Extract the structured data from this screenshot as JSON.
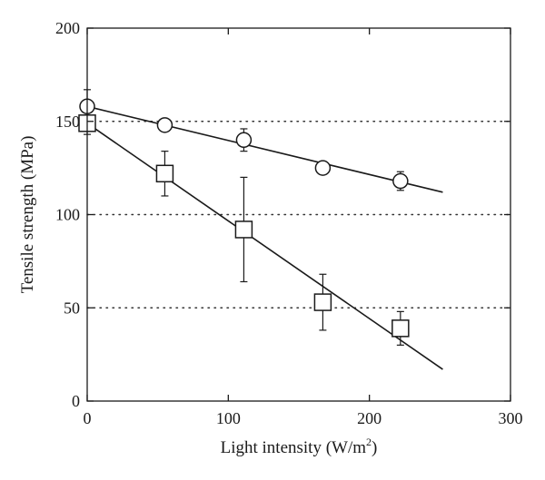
{
  "chart_data": {
    "type": "scatter",
    "xlabel": "Light intensity (W/m",
    "xlabel_superscript": "2",
    "xlabel_suffix": ")",
    "ylabel": "Tensile strength (MPa)",
    "xlim": [
      0,
      300
    ],
    "ylim": [
      0,
      200
    ],
    "xticks": [
      "0",
      "100",
      "200",
      "300"
    ],
    "yticks": [
      "0",
      "50",
      "100",
      "150",
      "200"
    ],
    "grid": "horizontal dotted at 50, 100, 150",
    "series": [
      {
        "marker": "circle",
        "x": [
          0,
          55,
          111,
          167,
          222
        ],
        "y": [
          158,
          148,
          140,
          125,
          118
        ],
        "error": [
          9,
          3,
          6,
          2,
          5
        ],
        "fit_line": {
          "x": [
            0,
            252
          ],
          "y": [
            158,
            112
          ]
        }
      },
      {
        "marker": "square",
        "x": [
          0,
          55,
          111,
          167,
          222
        ],
        "y": [
          149,
          122,
          92,
          53,
          39
        ],
        "error": [
          6,
          12,
          28,
          15,
          9
        ],
        "fit_line": {
          "x": [
            0,
            252
          ],
          "y": [
            149,
            17
          ]
        }
      }
    ]
  }
}
